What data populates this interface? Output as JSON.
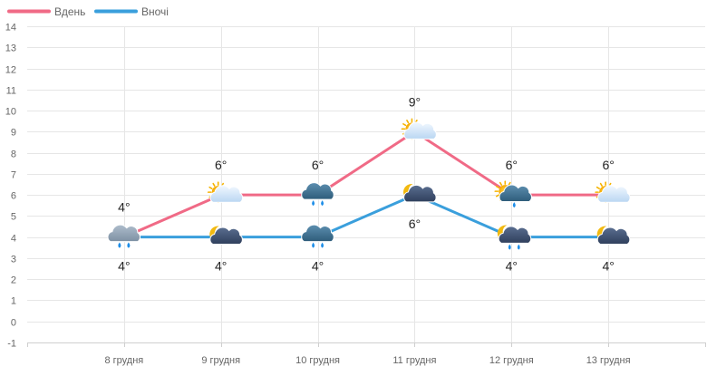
{
  "chart_data": {
    "type": "line",
    "categories": [
      "8 грудня",
      "9 грудня",
      "10 грудня",
      "11 грудня",
      "12 грудня",
      "13 грудня"
    ],
    "series": [
      {
        "name": "Вдень",
        "color": "#f06a86",
        "values": [
          4,
          6,
          6,
          9,
          6,
          6
        ],
        "labels": [
          "4°",
          "6°",
          "6°",
          "9°",
          "6°",
          "6°"
        ],
        "icons": [
          "rain-cloud-icon",
          "partly-sunny-icon",
          "rain-cloud-icon",
          "partly-sunny-icon",
          "sun-rain-cloud-icon",
          "partly-sunny-icon"
        ]
      },
      {
        "name": "Вночі",
        "color": "#3a9fdc",
        "values": [
          4,
          4,
          4,
          6,
          4,
          4
        ],
        "labels": [
          "4°",
          "4°",
          "4°",
          "6°",
          "4°",
          "4°"
        ],
        "icons": [
          "rain-cloud-icon",
          "moon-cloud-icon",
          "rain-cloud-icon",
          "moon-cloud-icon",
          "moon-rain-cloud-icon",
          "moon-cloud-icon"
        ]
      }
    ],
    "yticks": [
      -1,
      0,
      1,
      2,
      3,
      4,
      5,
      6,
      7,
      8,
      9,
      10,
      11,
      12,
      13,
      14
    ],
    "ylim": [
      -1,
      14
    ],
    "grid": true,
    "legend": "top-left"
  }
}
